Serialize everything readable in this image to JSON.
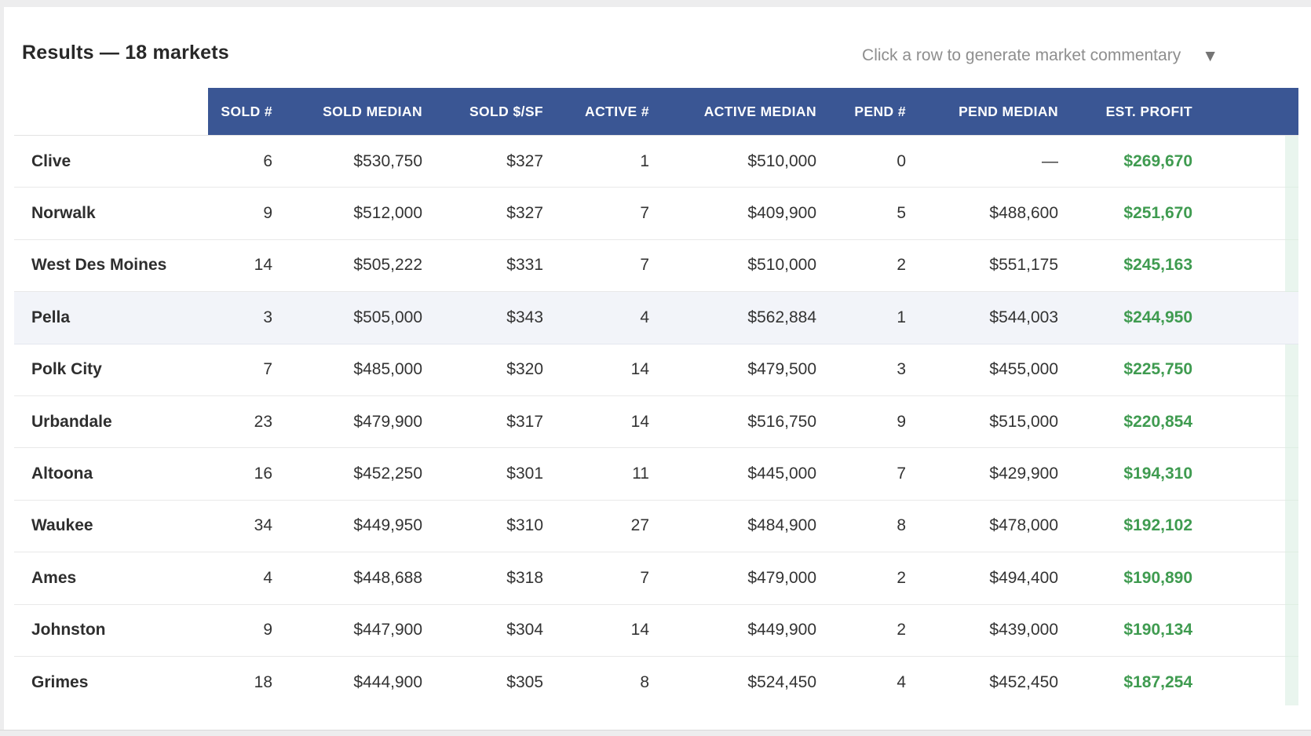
{
  "page": {
    "title": "Results — 18 markets",
    "hint": "Click a row to generate market commentary",
    "caret_icon": "▼"
  },
  "colors": {
    "page_bg": "#EDEDEE",
    "header_blue": "#3A5694",
    "profit_green": "#3F9B50",
    "row_highlight": "#F2F4F9",
    "strip_green": "#E9F5EE"
  },
  "table": {
    "columns": [
      "SOLD #",
      "SOLD MEDIAN",
      "SOLD $/SF",
      "ACTIVE #",
      "ACTIVE MEDIAN",
      "PEND #",
      "PEND MEDIAN",
      "EST. PROFIT"
    ],
    "highlighted_market": "Pella",
    "rows": [
      {
        "market": "Clive",
        "sold_count": "6",
        "sold_median": "$530,750",
        "sold_per_sf": "$327",
        "active_count": "1",
        "active_median": "$510,000",
        "pend_count": "0",
        "pend_median": "—",
        "est_profit": "$269,670"
      },
      {
        "market": "Norwalk",
        "sold_count": "9",
        "sold_median": "$512,000",
        "sold_per_sf": "$327",
        "active_count": "7",
        "active_median": "$409,900",
        "pend_count": "5",
        "pend_median": "$488,600",
        "est_profit": "$251,670"
      },
      {
        "market": "West Des Moines",
        "sold_count": "14",
        "sold_median": "$505,222",
        "sold_per_sf": "$331",
        "active_count": "7",
        "active_median": "$510,000",
        "pend_count": "2",
        "pend_median": "$551,175",
        "est_profit": "$245,163"
      },
      {
        "market": "Pella",
        "sold_count": "3",
        "sold_median": "$505,000",
        "sold_per_sf": "$343",
        "active_count": "4",
        "active_median": "$562,884",
        "pend_count": "1",
        "pend_median": "$544,003",
        "est_profit": "$244,950"
      },
      {
        "market": "Polk City",
        "sold_count": "7",
        "sold_median": "$485,000",
        "sold_per_sf": "$320",
        "active_count": "14",
        "active_median": "$479,500",
        "pend_count": "3",
        "pend_median": "$455,000",
        "est_profit": "$225,750"
      },
      {
        "market": "Urbandale",
        "sold_count": "23",
        "sold_median": "$479,900",
        "sold_per_sf": "$317",
        "active_count": "14",
        "active_median": "$516,750",
        "pend_count": "9",
        "pend_median": "$515,000",
        "est_profit": "$220,854"
      },
      {
        "market": "Altoona",
        "sold_count": "16",
        "sold_median": "$452,250",
        "sold_per_sf": "$301",
        "active_count": "11",
        "active_median": "$445,000",
        "pend_count": "7",
        "pend_median": "$429,900",
        "est_profit": "$194,310"
      },
      {
        "market": "Waukee",
        "sold_count": "34",
        "sold_median": "$449,950",
        "sold_per_sf": "$310",
        "active_count": "27",
        "active_median": "$484,900",
        "pend_count": "8",
        "pend_median": "$478,000",
        "est_profit": "$192,102"
      },
      {
        "market": "Ames",
        "sold_count": "4",
        "sold_median": "$448,688",
        "sold_per_sf": "$318",
        "active_count": "7",
        "active_median": "$479,000",
        "pend_count": "2",
        "pend_median": "$494,400",
        "est_profit": "$190,890"
      },
      {
        "market": "Johnston",
        "sold_count": "9",
        "sold_median": "$447,900",
        "sold_per_sf": "$304",
        "active_count": "14",
        "active_median": "$449,900",
        "pend_count": "2",
        "pend_median": "$439,000",
        "est_profit": "$190,134"
      },
      {
        "market": "Grimes",
        "sold_count": "18",
        "sold_median": "$444,900",
        "sold_per_sf": "$305",
        "active_count": "8",
        "active_median": "$524,450",
        "pend_count": "4",
        "pend_median": "$452,450",
        "est_profit": "$187,254"
      }
    ]
  }
}
